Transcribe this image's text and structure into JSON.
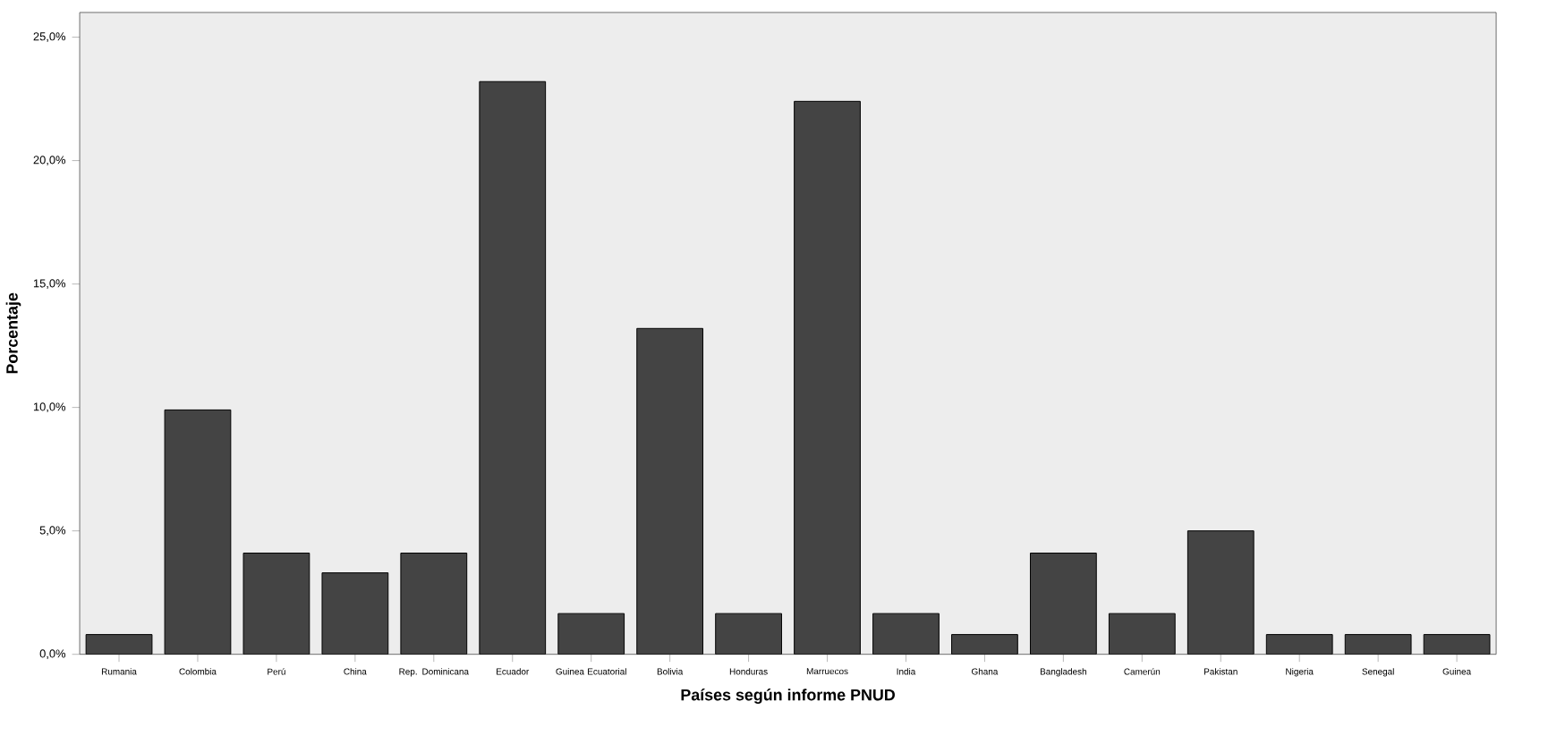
{
  "chart_data": {
    "type": "bar",
    "xlabel": "Países según informe PNUD",
    "ylabel": "Porcentaje",
    "categories": [
      "Rumania",
      "Colombia",
      "Perú",
      "China",
      "Rep. Dominicana",
      "Ecuador",
      "Guinea Ecuatorial",
      "Bolivia",
      "Honduras",
      "Marruecos",
      "India",
      "Ghana",
      "Bangladesh",
      "Camerún",
      "Pakistan",
      "Nigeria",
      "Senegal",
      "Guinea"
    ],
    "values": [
      0.8,
      9.9,
      4.1,
      3.3,
      4.1,
      23.2,
      1.65,
      13.2,
      1.65,
      22.4,
      1.65,
      0.8,
      4.1,
      1.65,
      5.0,
      0.8,
      0.8,
      0.8
    ],
    "color": "#444444",
    "ylim": [
      0,
      26
    ],
    "yticks": [
      {
        "value": 0,
        "label": "0,0%"
      },
      {
        "value": 5,
        "label": "5,0%"
      },
      {
        "value": 10,
        "label": "10,0%"
      },
      {
        "value": 15,
        "label": "15,0%"
      },
      {
        "value": 20,
        "label": "20,0%"
      },
      {
        "value": 25,
        "label": "25,0%"
      }
    ],
    "grid": false
  }
}
